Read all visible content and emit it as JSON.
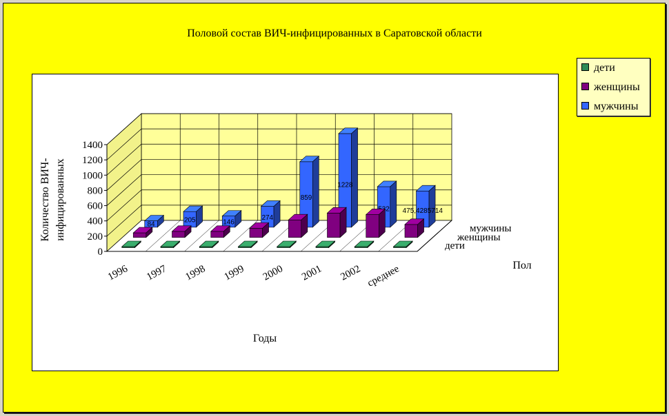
{
  "chart_data": {
    "type": "bar",
    "title": "Половой состав ВИЧ-инфицированных в Саратовской области",
    "xlabel": "Годы",
    "ylabel": "Количество ВИЧ-инфицированных",
    "zlabel": "Пол",
    "categories": [
      "1996",
      "1997",
      "1998",
      "1999",
      "2000",
      "2001",
      "2002",
      "среднее"
    ],
    "ylim": [
      0,
      1400
    ],
    "yticks": [
      "0",
      "200",
      "400",
      "600",
      "800",
      "1000",
      "1200",
      "1400"
    ],
    "legend_position": "right",
    "grid": true,
    "series": [
      {
        "name": "дети",
        "color": "#2e8b57",
        "values": [
          2,
          2,
          2,
          2,
          2,
          2,
          2,
          2
        ]
      },
      {
        "name": "женщины",
        "color": "#800080",
        "values": [
          60,
          80,
          80,
          120,
          230,
          320,
          300,
          170
        ]
      },
      {
        "name": "мужчины",
        "color": "#3366ff",
        "values": [
          84,
          205,
          146,
          274,
          859,
          1228,
          532,
          475.4285714
        ],
        "labels": [
          "84",
          "205",
          "146",
          "274",
          "859",
          "1228",
          "532",
          "475,4285714"
        ]
      }
    ]
  },
  "colors": {
    "background": "#ffff00",
    "plot_wall": "#ffff99",
    "panel": "#ffffff",
    "legend_bg": "#ffffc0"
  }
}
